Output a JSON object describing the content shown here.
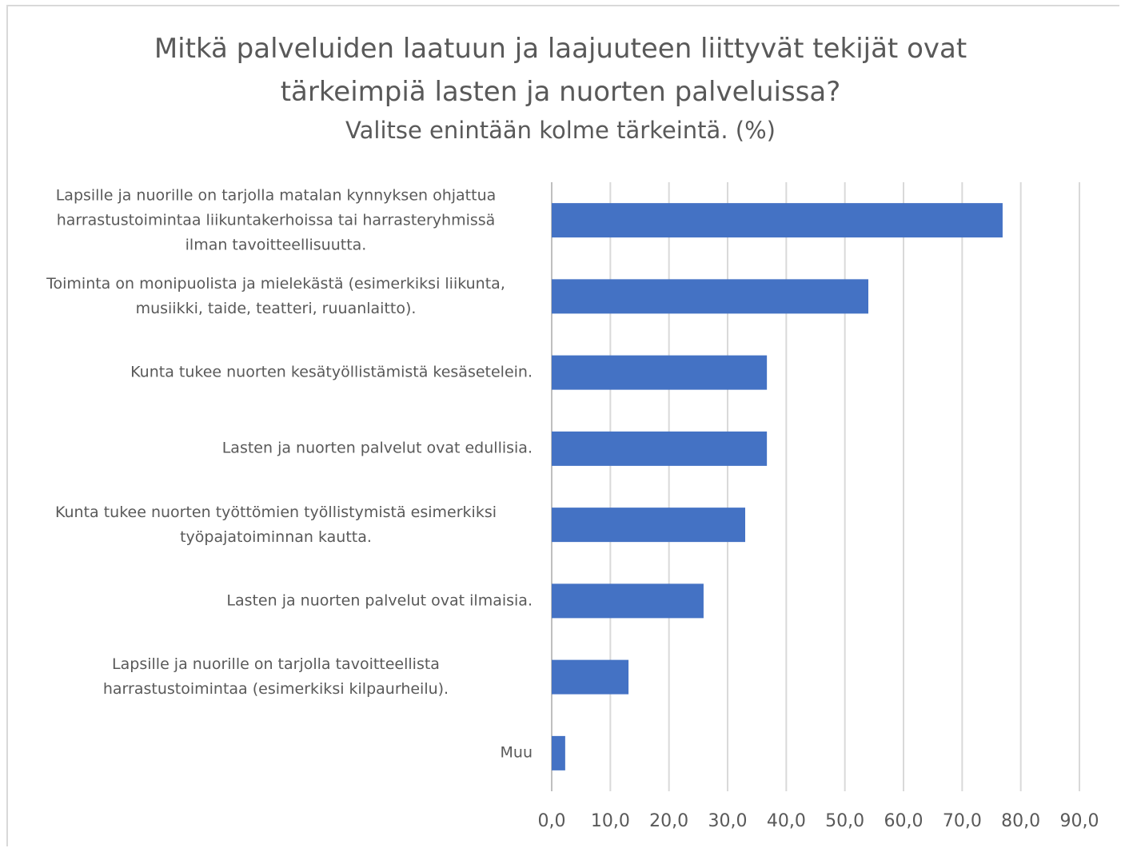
{
  "chart_data": {
    "type": "bar",
    "orientation": "horizontal",
    "title": "Mitkä palveluiden laatuun ja laajuuteen liittyvät tekijät ovat\ntärkeimpiä lasten ja nuorten palveluissa?",
    "subtitle": "Valitse enintään kolme tärkeintä. (%)",
    "categories": [
      "Lapsille ja nuorille on tarjolla matalan kynnyksen ohjattua\nharrastustoimintaa liikuntakerhoissa tai harrasteryhmissä\nilman tavoitteellisuutta.",
      "Toiminta on monipuolista ja mielekästä (esimerkiksi liikunta,\nmusiikki, taide, teatteri, ruuanlaitto).",
      "Kunta tukee nuorten kesätyöllistämistä kesäsetelein.",
      "Lasten ja nuorten palvelut ovat edullisia.",
      "Kunta tukee nuorten työttömien työllistymistä esimerkiksi\ntyöpajatoiminnan kautta.",
      "Lasten ja nuorten palvelut ovat ilmaisia.",
      "Lapsille ja nuorille on tarjolla tavoitteellista\nharrastustoimintaa (esimerkiksi kilpaurheilu).",
      "Muu"
    ],
    "values": [
      76.9,
      54.0,
      36.7,
      36.7,
      33.0,
      25.9,
      13.1,
      2.3
    ],
    "color": "#4472c4",
    "xlim": [
      0,
      90
    ],
    "xticks": [
      {
        "value": 0,
        "label": "0,0"
      },
      {
        "value": 10,
        "label": "10,0"
      },
      {
        "value": 20,
        "label": "20,0"
      },
      {
        "value": 30,
        "label": "30,0"
      },
      {
        "value": 40,
        "label": "40,0"
      },
      {
        "value": 50,
        "label": "50,0"
      },
      {
        "value": 60,
        "label": "60,0"
      },
      {
        "value": 70,
        "label": "70,0"
      },
      {
        "value": 80,
        "label": "80,0"
      },
      {
        "value": 90,
        "label": "90,0"
      }
    ],
    "grid": true
  }
}
